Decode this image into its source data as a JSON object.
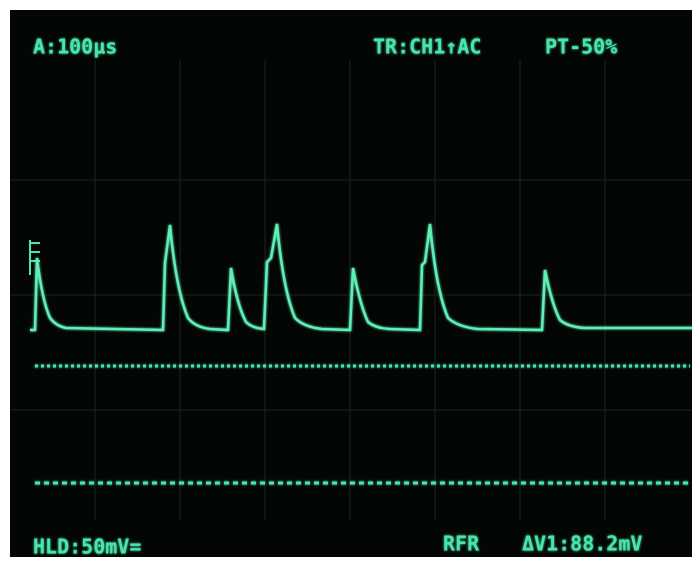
{
  "screen": {
    "top_left": "A:100µs",
    "top_trigger": "TR:CH1↑AC",
    "top_right": "PT-50%",
    "bottom_left": "HLD:50mV=",
    "bottom_mode": "RFR",
    "bottom_right": "ΔV1:88.2mV"
  }
}
